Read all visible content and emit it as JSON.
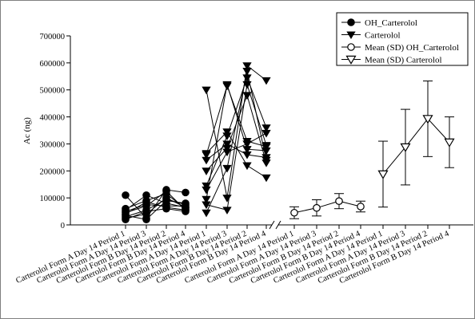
{
  "chart_data": {
    "type": "scatter",
    "ylabel": "Ac (ng)",
    "ylim": [
      0,
      700000
    ],
    "y_ticks": [
      "0",
      "100000",
      "200000",
      "300000",
      "400000",
      "500000",
      "600000",
      "700000"
    ],
    "y_tick_values": [
      0,
      100000,
      200000,
      300000,
      400000,
      500000,
      600000,
      700000
    ],
    "legend_position": "top-right",
    "categories": [
      "Carterolol Form A  Day 14  Period 1",
      "Carterolol Form A  Day 14  Period 3",
      "Carterolol Form B  Day 14  Period 2",
      "Carterolol Form B  Day 14  Period 4",
      "Carterolol Form A  Day 14  Period 1",
      "Carterolol Form A  Day 14  Period 3",
      "Carterolol Form B  Day 14  Period 2",
      "Carterolol Form B  Day 14  Period 4",
      "Carterolol Form A  Day 14  Period 1",
      "Carterolol Form A  Day 14  Period 3",
      "Carterolol Form B  Day 14  Period 2",
      "Carterolol Form B  Day 14  Period 4",
      "Carterolol Form A  Day 14  Period 1",
      "Carterolol Form A  Day 14  Period 3",
      "Carterolol Form B  Day 14  Period 2",
      "Carterolol Form B  Day 14  Period 4"
    ],
    "series": [
      {
        "name": "OH_Carterolol",
        "marker": "filled-circle",
        "positions": [
          1,
          2,
          3,
          4
        ],
        "subjects": [
          [
            110000,
            25000,
            130000,
            120000
          ],
          [
            55000,
            110000,
            80000,
            65000
          ],
          [
            45000,
            70000,
            125000,
            55000
          ],
          [
            35000,
            20000,
            90000,
            80000
          ],
          [
            20000,
            50000,
            60000,
            50000
          ],
          [
            25000,
            40000,
            100000,
            65000
          ],
          [
            60000,
            90000,
            115000,
            60000
          ],
          [
            50000,
            75000,
            70000,
            70000
          ],
          [
            30000,
            55000,
            95000,
            75000
          ],
          [
            40000,
            85000,
            65000,
            55000
          ]
        ]
      },
      {
        "name": "Carterolol",
        "marker": "filled-triangle-down",
        "positions": [
          5,
          6,
          7,
          8
        ],
        "subjects": [
          [
            500000,
            100000,
            590000,
            535000
          ],
          [
            260000,
            515000,
            310000,
            290000
          ],
          [
            200000,
            285000,
            480000,
            230000
          ],
          [
            145000,
            330000,
            545000,
            360000
          ],
          [
            95000,
            520000,
            280000,
            275000
          ],
          [
            45000,
            210000,
            570000,
            240000
          ],
          [
            265000,
            345000,
            220000,
            175000
          ],
          [
            130000,
            270000,
            300000,
            340000
          ],
          [
            75000,
            55000,
            520000,
            295000
          ],
          [
            240000,
            300000,
            260000,
            250000
          ]
        ]
      },
      {
        "name": "Mean (SD) OH_Carterolol",
        "marker": "open-circle",
        "positions": [
          9,
          10,
          11,
          12
        ],
        "mean": [
          45000,
          63000,
          88000,
          68000
        ],
        "sd": [
          22000,
          30000,
          28000,
          20000
        ]
      },
      {
        "name": "Mean (SD) Carterolol",
        "marker": "open-triangle-down",
        "positions": [
          13,
          14,
          15,
          16
        ],
        "mean": [
          188000,
          288000,
          393000,
          306000
        ],
        "sd": [
          122000,
          140000,
          140000,
          94000
        ]
      }
    ],
    "axis_break_after_position": 8,
    "grid": false
  }
}
